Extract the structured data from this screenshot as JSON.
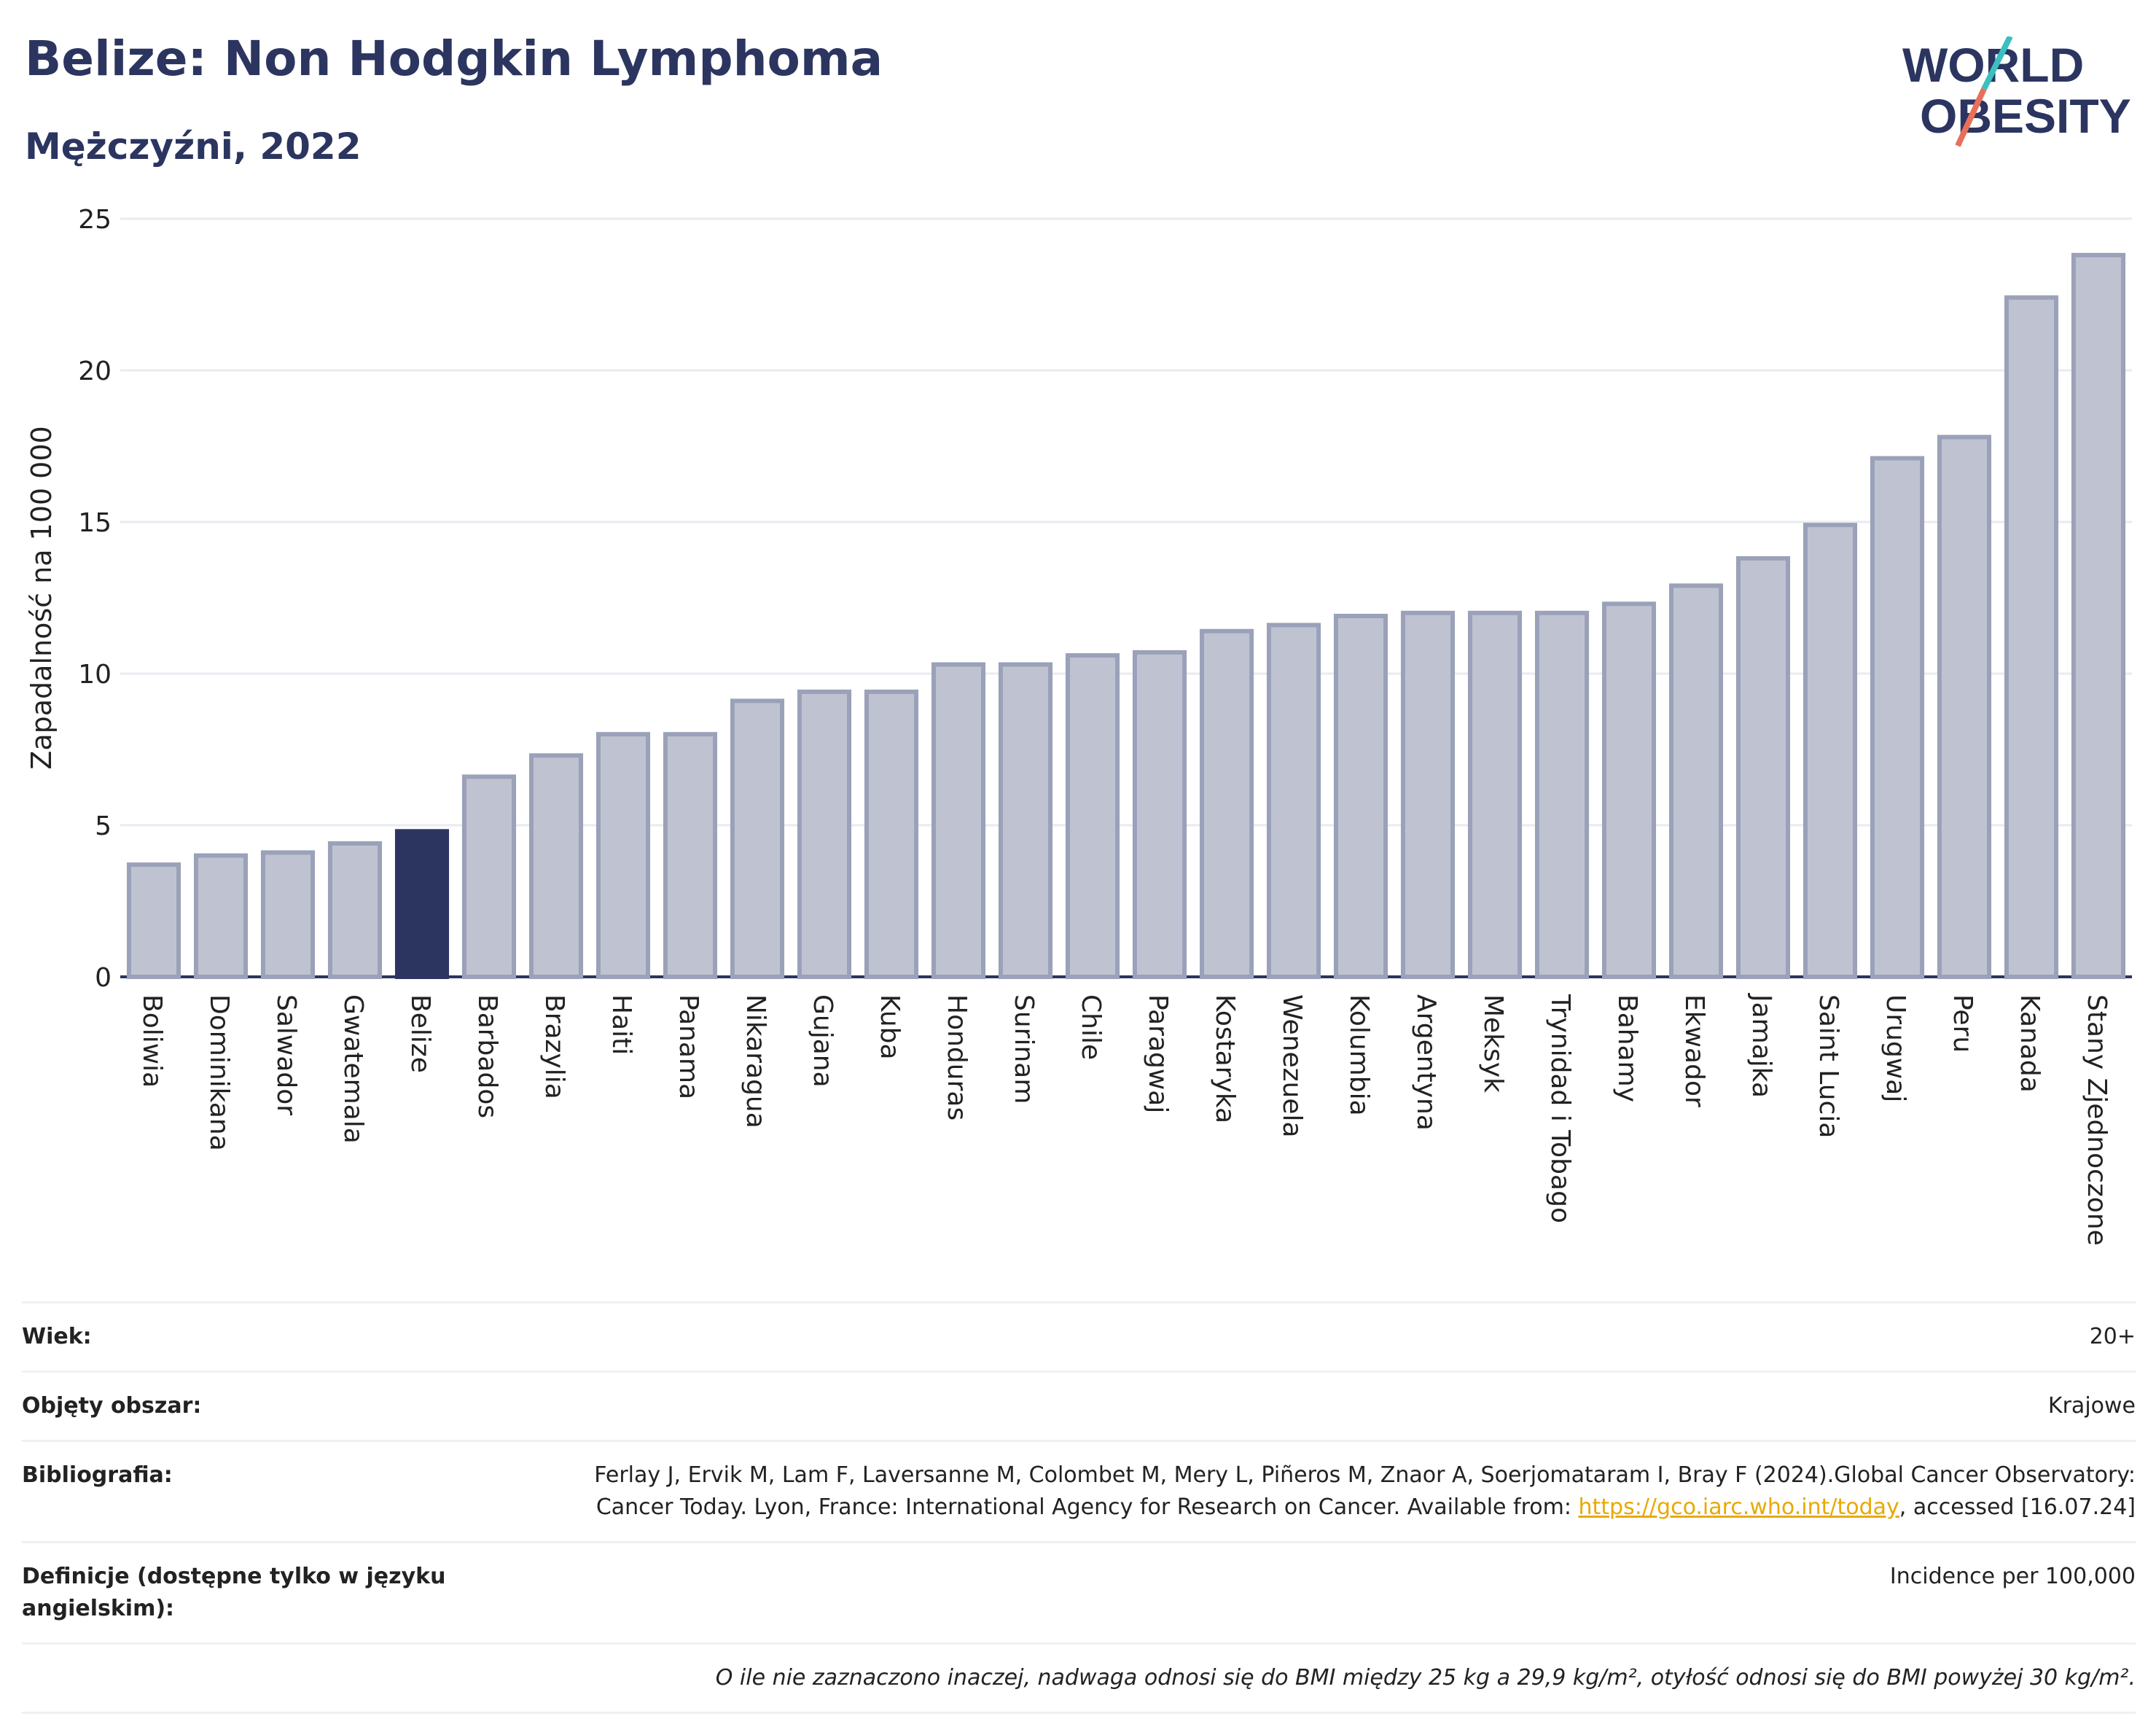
{
  "header": {
    "title": "Belize: Non Hodgkin Lymphoma",
    "subtitle": "Mężczyźni, 2022"
  },
  "logo": {
    "line1": "WORLD",
    "line2": "OBESITY",
    "colors": {
      "text": "#2b3560",
      "slash_top": "#3bbfbf",
      "slash_bottom": "#e8705a"
    }
  },
  "chart_data": {
    "type": "bar",
    "ylabel": "Zapadalność na 100 000",
    "ylim": [
      0,
      25
    ],
    "yticks": [
      0,
      5,
      10,
      15,
      20,
      25
    ],
    "highlight": "Belize",
    "colors": {
      "bar": "#bfc3d1",
      "bar_border": "#9aa1b9",
      "highlight": "#2b3560",
      "grid": "#e9ebf0"
    },
    "categories": [
      "Boliwia",
      "Dominikana",
      "Salwador",
      "Gwatemala",
      "Belize",
      "Barbados",
      "Brazylia",
      "Haiti",
      "Panama",
      "Nikaragua",
      "Gujana",
      "Kuba",
      "Honduras",
      "Surinam",
      "Chile",
      "Paragwaj",
      "Kostaryka",
      "Wenezuela",
      "Kolumbia",
      "Argentyna",
      "Meksyk",
      "Trynidad i Tobago",
      "Bahamy",
      "Ekwador",
      "Jamajka",
      "Saint Lucia",
      "Urugwaj",
      "Peru",
      "Kanada",
      "Stany Zjednoczone"
    ],
    "values": [
      3.7,
      4.0,
      4.1,
      4.4,
      4.8,
      6.6,
      7.3,
      8.0,
      8.0,
      9.1,
      9.4,
      9.4,
      10.3,
      10.3,
      10.6,
      10.7,
      11.4,
      11.6,
      11.9,
      12.0,
      12.0,
      12.0,
      12.3,
      12.9,
      13.8,
      14.9,
      17.1,
      17.8,
      22.4,
      23.8
    ]
  },
  "meta": {
    "age_label": "Wiek:",
    "age_value": "20+",
    "area_label": "Objęty obszar:",
    "area_value": "Krajowe",
    "bib_label": "Bibliografia:",
    "bib_text1": "Ferlay J, Ervik M, Lam F, Laversanne M, Colombet M, Mery L, Piñeros M, Znaor A, Soerjomataram I, Bray F (2024).Global Cancer Observatory: Cancer Today. Lyon, France: International Agency for Research on Cancer. Available from: ",
    "bib_link": "https://gco.iarc.who.int/today",
    "bib_text2": ", accessed [16.07.24]",
    "def_label": "Definicje (dostępne tylko w języku angielskim):",
    "def_value": "Incidence per 100,000",
    "note": "O ile nie zaznaczono inaczej, nadwaga odnosi się do BMI między 25 kg a 29,9 kg/m², otyłość odnosi się do BMI powyżej 30 kg/m²."
  }
}
